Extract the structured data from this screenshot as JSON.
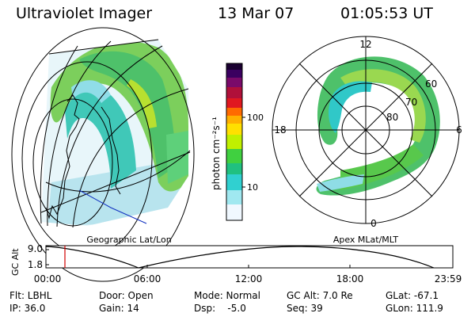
{
  "header": {
    "title": "Ultraviolet Imager",
    "date": "13 Mar 07",
    "time": "01:05:53 UT"
  },
  "colorbar": {
    "label": "photon cm⁻²s⁻¹",
    "ticks": [
      "100",
      "10"
    ],
    "colors": [
      "#1a0030",
      "#3a0060",
      "#7a0a6a",
      "#b0103a",
      "#e01820",
      "#ff6a00",
      "#ffb000",
      "#ffe000",
      "#c0f000",
      "#40d040",
      "#20c080",
      "#30d0d0",
      "#a0e8f0",
      "#f0f8ff"
    ]
  },
  "left_panel": {
    "caption": "Geographic Lat/Lon"
  },
  "right_panel": {
    "caption": "Apex MLat/MLT",
    "mlt_labels": [
      "12",
      "18",
      "6",
      "0"
    ],
    "lat_labels": [
      "60",
      "70",
      "80"
    ]
  },
  "timeline": {
    "y_axis_label": "GC Alt",
    "y_ticks": [
      "9.0",
      "1.8"
    ],
    "x_ticks": [
      "00:00",
      "06:00",
      "12:00",
      "18:00",
      "23:59"
    ],
    "marker_time": "01:05",
    "marker_color": "#d00000"
  },
  "footer": {
    "flt": "Flt: LBHL",
    "ip": "IP: 36.0",
    "door": "Door: Open",
    "gain": "Gain: 14",
    "mode": "Mode: Normal",
    "dsp": "Dsp:    -5.0",
    "gcalt": "GC Alt: 7.0 Re",
    "seq": "Seq: 39",
    "glat": "GLat: -67.1",
    "glon": "GLon: 111.9"
  }
}
